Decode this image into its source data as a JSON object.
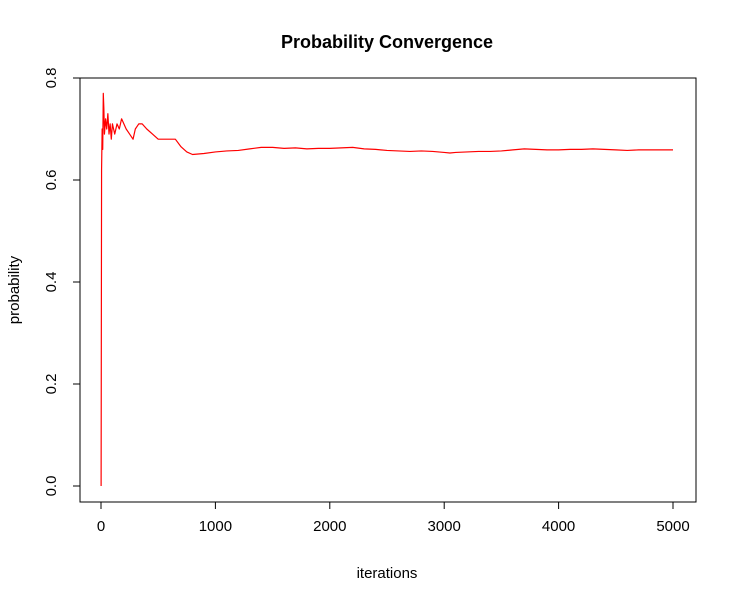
{
  "chart_data": {
    "type": "line",
    "title": "Probability Convergence",
    "xlabel": "iterations",
    "ylabel": "probability",
    "xlim": [
      0,
      5000
    ],
    "ylim": [
      0,
      0.8
    ],
    "x_ticks": [
      "0",
      "1000",
      "2000",
      "3000",
      "4000",
      "5000"
    ],
    "y_ticks": [
      "0.0",
      "0.2",
      "0.4",
      "0.6",
      "0.8"
    ],
    "grid": false,
    "series": [
      {
        "color": "#ff0000",
        "points": [
          [
            1,
            0.0
          ],
          [
            5,
            0.62
          ],
          [
            10,
            0.7
          ],
          [
            15,
            0.66
          ],
          [
            20,
            0.77
          ],
          [
            25,
            0.74
          ],
          [
            30,
            0.69
          ],
          [
            40,
            0.72
          ],
          [
            50,
            0.7
          ],
          [
            60,
            0.73
          ],
          [
            70,
            0.69
          ],
          [
            80,
            0.71
          ],
          [
            90,
            0.68
          ],
          [
            100,
            0.71
          ],
          [
            120,
            0.69
          ],
          [
            140,
            0.71
          ],
          [
            160,
            0.7
          ],
          [
            180,
            0.72
          ],
          [
            200,
            0.71
          ],
          [
            220,
            0.7
          ],
          [
            250,
            0.69
          ],
          [
            280,
            0.68
          ],
          [
            300,
            0.7
          ],
          [
            330,
            0.71
          ],
          [
            360,
            0.71
          ],
          [
            400,
            0.7
          ],
          [
            450,
            0.69
          ],
          [
            500,
            0.68
          ],
          [
            550,
            0.68
          ],
          [
            600,
            0.68
          ],
          [
            650,
            0.68
          ],
          [
            700,
            0.665
          ],
          [
            750,
            0.655
          ],
          [
            800,
            0.65
          ],
          [
            850,
            0.651
          ],
          [
            900,
            0.652
          ],
          [
            1000,
            0.655
          ],
          [
            1100,
            0.657
          ],
          [
            1200,
            0.658
          ],
          [
            1300,
            0.661
          ],
          [
            1400,
            0.664
          ],
          [
            1500,
            0.664
          ],
          [
            1600,
            0.662
          ],
          [
            1700,
            0.663
          ],
          [
            1800,
            0.661
          ],
          [
            1900,
            0.662
          ],
          [
            2000,
            0.662
          ],
          [
            2100,
            0.663
          ],
          [
            2200,
            0.664
          ],
          [
            2300,
            0.661
          ],
          [
            2400,
            0.66
          ],
          [
            2500,
            0.658
          ],
          [
            2600,
            0.657
          ],
          [
            2700,
            0.656
          ],
          [
            2800,
            0.657
          ],
          [
            2900,
            0.656
          ],
          [
            3000,
            0.654
          ],
          [
            3050,
            0.653
          ],
          [
            3100,
            0.654
          ],
          [
            3200,
            0.655
          ],
          [
            3300,
            0.656
          ],
          [
            3400,
            0.656
          ],
          [
            3500,
            0.657
          ],
          [
            3600,
            0.659
          ],
          [
            3700,
            0.661
          ],
          [
            3800,
            0.66
          ],
          [
            3900,
            0.659
          ],
          [
            4000,
            0.659
          ],
          [
            4100,
            0.66
          ],
          [
            4200,
            0.66
          ],
          [
            4300,
            0.661
          ],
          [
            4400,
            0.66
          ],
          [
            4500,
            0.659
          ],
          [
            4600,
            0.658
          ],
          [
            4700,
            0.659
          ],
          [
            4800,
            0.659
          ],
          [
            4900,
            0.659
          ],
          [
            5000,
            0.659
          ]
        ]
      }
    ]
  }
}
